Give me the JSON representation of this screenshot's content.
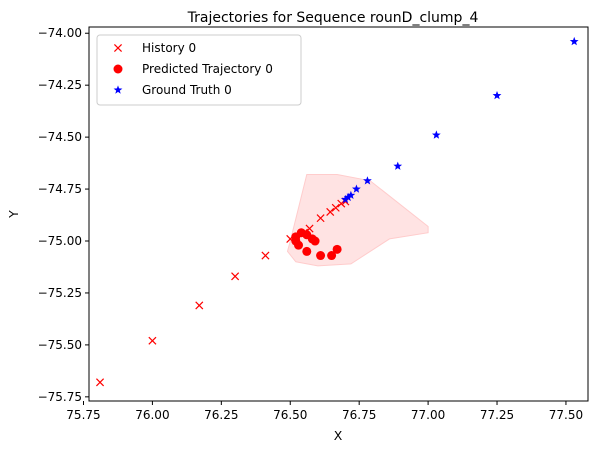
{
  "chart_data": {
    "type": "scatter",
    "title": "Trajectories for Sequence rounD_clump_4",
    "xlabel": "X",
    "ylabel": "Y",
    "xlim": [
      75.77,
      77.58
    ],
    "ylim": [
      -75.77,
      -73.97
    ],
    "x_ticks": [
      75.75,
      76.0,
      76.25,
      76.5,
      76.75,
      77.0,
      77.25,
      77.5
    ],
    "y_ticks": [
      -75.75,
      -75.5,
      -75.25,
      -75.0,
      -74.75,
      -74.5,
      -74.25,
      -74.0
    ],
    "grid": false,
    "legend_position": "top-left",
    "series": [
      {
        "name": "History 0",
        "marker": "x",
        "color": "#ff0000",
        "x": [
          75.81,
          76.0,
          76.17,
          76.3,
          76.41,
          76.5,
          76.55,
          76.57,
          76.61,
          76.645,
          76.665,
          76.685,
          76.7
        ],
        "y": [
          -75.68,
          -75.48,
          -75.31,
          -75.17,
          -75.07,
          -74.99,
          -74.96,
          -74.94,
          -74.89,
          -74.86,
          -74.84,
          -74.82,
          -74.81
        ]
      },
      {
        "name": "Predicted Trajectory 0",
        "marker": "circle",
        "color": "#ff0000",
        "x": [
          76.52,
          76.53,
          76.54,
          76.56,
          76.58,
          76.59,
          76.56,
          76.61,
          76.65,
          76.67,
          76.52
        ],
        "y": [
          -74.98,
          -75.02,
          -74.96,
          -74.97,
          -74.99,
          -75.0,
          -75.05,
          -75.07,
          -75.07,
          -75.04,
          -75.0
        ]
      },
      {
        "name": "Ground Truth 0",
        "marker": "star",
        "color": "#0000ff",
        "x": [
          76.7,
          76.71,
          76.72,
          76.74,
          76.78,
          76.89,
          77.03,
          77.25,
          77.53
        ],
        "y": [
          -74.8,
          -74.79,
          -74.78,
          -74.75,
          -74.71,
          -74.64,
          -74.49,
          -74.3,
          -74.04
        ]
      }
    ],
    "uncertainty_region": {
      "color": "#ffcccc",
      "x": [
        76.56,
        76.67,
        76.79,
        77.0,
        77.0,
        76.86,
        76.72,
        76.6,
        76.52,
        76.49,
        76.5
      ],
      "y": [
        -74.68,
        -74.68,
        -74.71,
        -74.93,
        -74.96,
        -74.99,
        -75.11,
        -75.12,
        -75.1,
        -75.05,
        -75.0
      ]
    }
  }
}
